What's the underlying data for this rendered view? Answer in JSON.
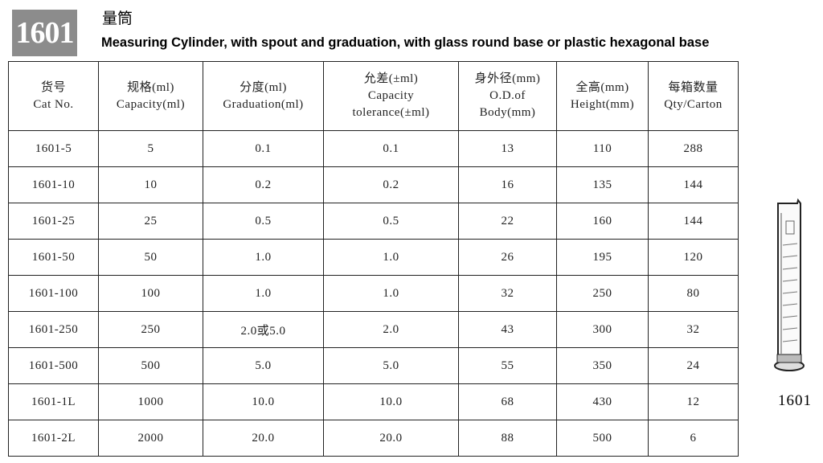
{
  "header": {
    "badge": "1601",
    "title_cn": "量筒",
    "title_en": "Measuring Cylinder, with spout and graduation, with glass round base or plastic hexagonal base"
  },
  "table": {
    "columns": [
      [
        "货号",
        "Cat No."
      ],
      [
        "规格(ml)",
        "Capacity(ml)"
      ],
      [
        "分度(ml)",
        "Graduation(ml)"
      ],
      [
        "允差(±ml)",
        "Capacity",
        "tolerance(±ml)"
      ],
      [
        "身外径(mm)",
        "O.D.of",
        "Body(mm)"
      ],
      [
        "全高(mm)",
        "Height(mm)"
      ],
      [
        "每箱数量",
        "Qty/Carton"
      ]
    ],
    "rows": [
      [
        "1601-5",
        "5",
        "0.1",
        "0.1",
        "13",
        "110",
        "288"
      ],
      [
        "1601-10",
        "10",
        "0.2",
        "0.2",
        "16",
        "135",
        "144"
      ],
      [
        "1601-25",
        "25",
        "0.5",
        "0.5",
        "22",
        "160",
        "144"
      ],
      [
        "1601-50",
        "50",
        "1.0",
        "1.0",
        "26",
        "195",
        "120"
      ],
      [
        "1601-100",
        "100",
        "1.0",
        "1.0",
        "32",
        "250",
        "80"
      ],
      [
        "1601-250",
        "250",
        "2.0或5.0",
        "2.0",
        "43",
        "300",
        "32"
      ],
      [
        "1601-500",
        "500",
        "5.0",
        "5.0",
        "55",
        "350",
        "24"
      ],
      [
        "1601-1L",
        "1000",
        "10.0",
        "10.0",
        "68",
        "430",
        "12"
      ],
      [
        "1601-2L",
        "2000",
        "20.0",
        "20.0",
        "88",
        "500",
        "6"
      ]
    ]
  },
  "figure": {
    "label": "1601"
  }
}
